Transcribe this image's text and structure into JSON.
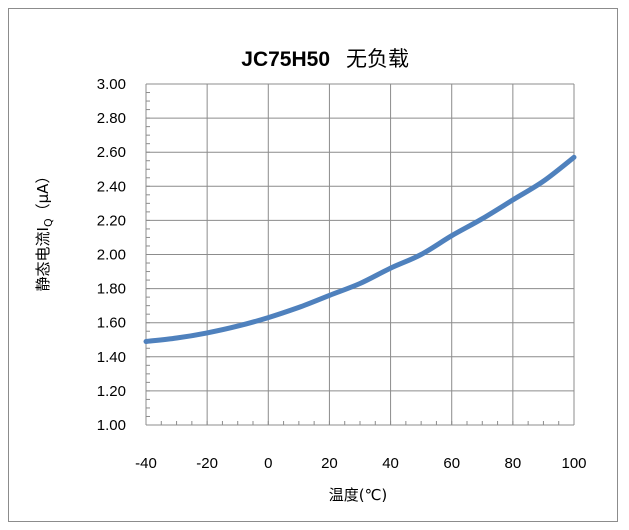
{
  "chart_data": {
    "type": "line",
    "title": "JC75H50",
    "subtitle": "无负载",
    "xlabel": "温度(℃)",
    "ylabel": {
      "prefix": "静态电流I",
      "subscript": "Q",
      "unit": "（μA）"
    },
    "xlim": [
      -40,
      100
    ],
    "ylim": [
      1.0,
      3.0
    ],
    "x_ticks": [
      "-40",
      "-20",
      "0",
      "20",
      "40",
      "60",
      "80",
      "100"
    ],
    "y_ticks": [
      "1.00",
      "1.20",
      "1.40",
      "1.60",
      "1.80",
      "2.00",
      "2.20",
      "2.40",
      "2.60",
      "2.80",
      "3.00"
    ],
    "grid": true,
    "legend": "none",
    "series": [
      {
        "color": "#4f81bd",
        "x": [
          -40,
          -30,
          -20,
          -10,
          0,
          10,
          20,
          30,
          40,
          50,
          60,
          70,
          80,
          90,
          100
        ],
        "y": [
          1.49,
          1.51,
          1.54,
          1.58,
          1.63,
          1.69,
          1.76,
          1.83,
          1.92,
          2.0,
          2.11,
          2.21,
          2.32,
          2.43,
          2.57
        ]
      }
    ]
  }
}
